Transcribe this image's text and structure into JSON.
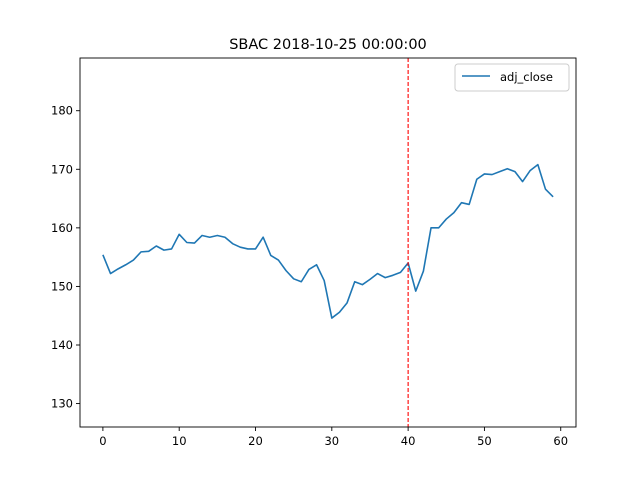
{
  "chart_data": {
    "type": "line",
    "title": "SBAC 2018-10-25 00:00:00",
    "xlabel": "",
    "ylabel": "",
    "xlim": [
      -3,
      62
    ],
    "ylim": [
      126,
      189
    ],
    "x_ticks": [
      0,
      10,
      20,
      30,
      40,
      50,
      60
    ],
    "y_ticks": [
      130,
      140,
      150,
      160,
      170,
      180
    ],
    "grid": false,
    "legend_position": "upper right",
    "marker_line": {
      "x": 40,
      "color": "#ff0000",
      "style": "dashed"
    },
    "series": [
      {
        "name": "adj_close",
        "color": "#1f77b4",
        "x": [
          0,
          1,
          2,
          3,
          4,
          5,
          6,
          7,
          8,
          9,
          10,
          11,
          12,
          13,
          14,
          15,
          16,
          17,
          18,
          19,
          20,
          21,
          22,
          23,
          24,
          25,
          26,
          27,
          28,
          29,
          30,
          31,
          32,
          33,
          34,
          35,
          36,
          37,
          38,
          39,
          40,
          41,
          42,
          43,
          44,
          45,
          46,
          47,
          48,
          49,
          50,
          51,
          52,
          53,
          54,
          55,
          56,
          57,
          58,
          59
        ],
        "values": [
          155.4,
          152.2,
          153.0,
          153.7,
          154.5,
          155.9,
          156.0,
          156.9,
          156.2,
          156.4,
          158.9,
          157.5,
          157.4,
          158.7,
          158.4,
          158.7,
          158.4,
          157.3,
          156.7,
          156.4,
          156.4,
          158.4,
          155.3,
          154.5,
          152.7,
          151.3,
          150.8,
          152.9,
          153.7,
          151.0,
          144.6,
          145.6,
          147.2,
          150.8,
          150.3,
          151.2,
          152.2,
          151.5,
          151.9,
          152.4,
          154.0,
          149.2,
          152.6,
          160.0,
          160.0,
          161.5,
          162.6,
          164.3,
          164.0,
          168.3,
          169.2,
          169.1,
          169.6,
          170.1,
          169.6,
          167.9,
          169.8,
          170.8,
          166.6,
          165.3
        ]
      }
    ]
  }
}
